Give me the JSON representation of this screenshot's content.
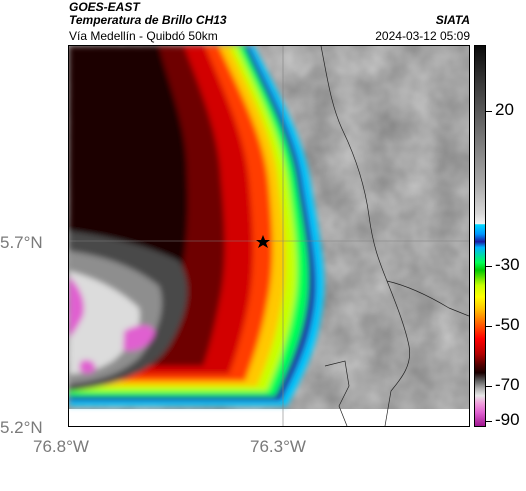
{
  "header": {
    "satellite": "GOES-EAST",
    "product": "Temperatura de Brillo CH13",
    "route": "Vía Medellín - Quibdó 50km",
    "brand": "SIATA",
    "timestamp": "2024-03-12 05:09"
  },
  "map": {
    "axes": {
      "y_ticks": [
        {
          "label": "5.7°N",
          "value": 5.7
        },
        {
          "label": "5.2°N",
          "value": 5.2
        }
      ],
      "x_ticks": [
        {
          "label": "76.8°W",
          "value": -76.8
        },
        {
          "label": "76.3°W",
          "value": -76.3
        }
      ]
    },
    "marker": {
      "icon": "star-icon",
      "lat": 5.7,
      "lon": -76.32
    },
    "gridlines": true
  },
  "colorbar": {
    "ticks": [
      "20",
      "-30",
      "-50",
      "-70",
      "-90"
    ],
    "colors": {
      "warm": "#d6d6d6",
      "cyan": "#00d8ff",
      "blue": "#1a1aa0",
      "green": "#00c800",
      "yellow": "#ffff00",
      "red": "#ff0000",
      "dark": "#1a0000",
      "pink": "#e060d0"
    }
  }
}
